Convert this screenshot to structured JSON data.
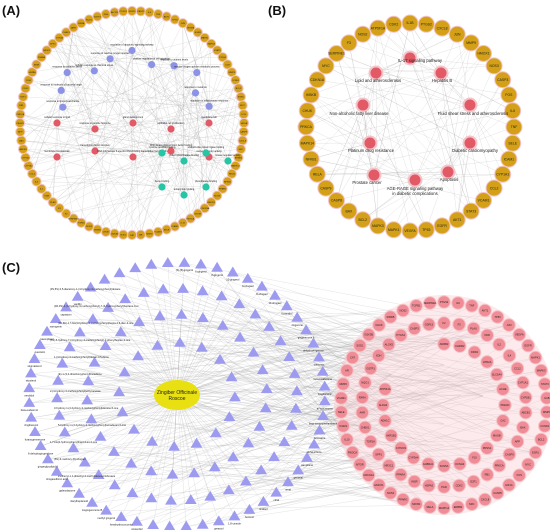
{
  "colors": {
    "gold": "#d4a017",
    "gold_ring": "#f3c4c9",
    "go_term": "#8c93e6",
    "kegg_red": "#e15a66",
    "teal": "#27c4a6",
    "triangle": "#9d9bf0",
    "target_pink": "#f08c96",
    "target_ring": "#f7c3c8",
    "compound_center": "#e8e011",
    "edge": "#aaaaaa"
  },
  "panels": {
    "a": {
      "label": "(A)",
      "outer_nodes": [
        "GDF15",
        "CASP3",
        "IL6",
        "TNF",
        "AKT1",
        "TP53",
        "JUN",
        "VEGFA",
        "EGFR",
        "MAPK1",
        "MAPK3",
        "STAT3",
        "PTGS2",
        "IL1B",
        "MMP9",
        "CCND1",
        "BCL2",
        "ESR1",
        "MYC",
        "FOS",
        "HIF1A",
        "CASP8",
        "CXCL8",
        "SRC",
        "ERBB2",
        "MAPK14",
        "RELA",
        "NFKB1",
        "PPARG",
        "NOS3",
        "HMOX1",
        "CDKN1A",
        "MTOR",
        "PIK3CA",
        "IL10",
        "ICAM1",
        "SELE",
        "VCAM1",
        "MMP2",
        "AR",
        "CAT",
        "SOD1",
        "GSK3B",
        "CHUK",
        "IKBKB",
        "NOS2",
        "TGFB1",
        "SERPINE1",
        "F2",
        "F3",
        "PLAU",
        "KDR",
        "IL2",
        "IL4",
        "CCL2",
        "CYP1A1",
        "CYP1B1",
        "ABCB1",
        "BAX",
        "APP",
        "CASP9",
        "PRKCA",
        "RB1",
        "E2F1",
        "CDK2",
        "PGR",
        "HSPA5",
        "INSR",
        "PPARA",
        "NR3C1",
        "SPP1",
        "TOP2A",
        "CHEK1",
        "AHR",
        "RXRA",
        "NQO1",
        "GSTP1",
        "XDH",
        "ALOX5",
        "PTGS1"
      ],
      "inner_labels": [
        "response to lipopolysaccharide",
        "response to molecule of bacterial origin",
        "response to oxidative stress",
        "cellular response to chemical stress",
        "response to reactive oxygen species",
        "regulation of apoptotic signaling pathway",
        "positive regulation of cell migration",
        "response to nutrient levels",
        "reactive oxygen species metabolic process",
        "response to metal ion",
        "regulation of inflammatory response",
        "cellular response to lipid",
        "response to peptide hormone",
        "gland development",
        "epithelial cell proliferation",
        "membrane raft",
        "membrane microdomain",
        "transcription factor complex",
        "RNA polymerase II-specific DNA-binding transcription factor binding",
        "DNA-binding transcription factor binding",
        "nuclear receptor activity",
        "cytokine receptor binding",
        "protein phosphatase binding",
        "ubiquitin-like protein ligase binding",
        "kinase regulator activity",
        "heme binding",
        "tetrapyrrole binding",
        "phosphatase binding"
      ]
    },
    "b": {
      "label": "(B)",
      "outer_nodes": [
        "IL1B",
        "PTGS2",
        "CXCL8",
        "JUN",
        "MMP9",
        "HMOX1",
        "NOS3",
        "CASP3",
        "FOS",
        "IL6",
        "TNF",
        "SELE",
        "ICAM1",
        "CYP1A1",
        "CCL2",
        "VCAM1",
        "STAT3",
        "AKT1",
        "EGFR",
        "TP53",
        "VEGFA",
        "MAPK1",
        "MAPK3",
        "BCL2",
        "BAX",
        "CASP8",
        "CASP9",
        "RELA",
        "NFKB1",
        "MAPK14",
        "PRKCA",
        "CHUK",
        "IKBKB",
        "CDKN1A",
        "MYC",
        "SERPINE1",
        "F3",
        "NOS2",
        "ATP5F1A",
        "CDK2"
      ],
      "inner_labels": [
        "IL-17 signaling pathway",
        "Lipid and atherosclerosis",
        "Hepatitis B",
        "Non-alcoholic fatty liver disease",
        "Fluid shear stress and atherosclerosis",
        "Platinum drug resistance",
        "Diabetic cardiomyopathy",
        "Prostate cancer",
        "Apoptosis",
        "AGE-RAGE signaling pathway in diabetic complications"
      ]
    },
    "c": {
      "label": "(C)",
      "center_label": "Zingiber Officinale Roscoe",
      "compounds": [
        "(S)-[6]-gingerol",
        "6-gingerol",
        "8-gingerol",
        "10-gingerol",
        "6-shogaol",
        "8-shogaol",
        "10-shogaol",
        "6-paradol",
        "zingerone",
        "gingerenone A",
        "dehydrozingerone",
        "curcumin",
        "beta-bisabolene",
        "zingiberene",
        "ar-curcumene",
        "beta-sesquiphellandrene",
        "farnesene",
        "alpha-pinene",
        "camphene",
        "geranial",
        "neral",
        "citral",
        "linalool",
        "borneol",
        "1,8-cineole",
        "geraniol",
        "myrcene",
        "limonene",
        "beta-elemene",
        "gingerdione",
        "gingerdiol",
        "hexahydrocurcumin",
        "methyl gingerol",
        "isogingerenone B",
        "diarylheptanoid",
        "galanolactone",
        "shogasulfonic acid",
        "gingerglycolipid A",
        "6-dehydrogingerdione",
        "furanogermenone",
        "zingiberenol",
        "beta-eudesmol",
        "nerolidol",
        "sitosterol",
        "stigmasterol",
        "quercetin",
        "kaempferol",
        "naringenin",
        "capsaicin",
        "vanillin"
      ],
      "long_labels": [
        "(3S,5S)-3,5-diacetoxy-1-(4-hydroxy-3-methoxyphenyl)decane",
        "(1R,3S)-1-(4-hydroxy-3-methoxyphenyl)-7-(4-hydroxyphenyl)heptane-3-ol",
        "(4E,6E)-1,7-bis(4-hydroxy-3-methoxyphenyl)hepta-4,6-dien-3-one",
        "(5S)-5-hydroxy-7-(4-hydroxy-3-methoxyphenyl)-1-phenylheptan-3-one",
        "1-(4-hydroxy-3-methoxyphenyl)decan-3,5-dione",
        "(E)-1-(3,4-dimethoxyphenyl)butadiene",
        "2-(4-hydroxy-3-methoxyphenyl)ethyl acetate",
        "3-hydroxy-1-(4-hydroxy-3-methoxyphenyl)decane-5-one",
        "5-hydroxy-1-(4-hydroxy-3-methoxyphenyl)tetradecan-3-one",
        "1,7-bis(4-hydroxyphenyl)hept-4-en-3-one",
        "(6S)-6-methoxy-[6]-shogaol",
        "2-ethenyl-1,1-dimethyl-3-methylidenecyclohexane"
      ],
      "targets": [
        "PTGS2",
        "IL6",
        "TNF",
        "AKT1",
        "TP53",
        "JUN",
        "VEGFA",
        "EGFR",
        "MAPK1",
        "MAPK3",
        "STAT3",
        "IL1B",
        "MMP9",
        "CCND1",
        "BCL2",
        "ESR1",
        "MYC",
        "FOS",
        "HIF1A",
        "CASP8",
        "CXCL8",
        "SRC",
        "ERBB2",
        "MAPK14",
        "RELA",
        "NFKB1",
        "PPARG",
        "NOS3",
        "HMOX1",
        "CDKN1A",
        "MTOR",
        "PIK3CA",
        "IL10",
        "ICAM1",
        "SELE",
        "VCAM1",
        "MMP2",
        "AR",
        "CAT",
        "SOD1",
        "GSK3B",
        "CHUK",
        "IKBKB",
        "NOS2",
        "TGFB1",
        "SERPINE1",
        "F2",
        "F3",
        "PLAU",
        "KDR",
        "IL2",
        "IL4",
        "CCL2",
        "CYP1A1",
        "CYP1B1",
        "ABCB1",
        "BAX",
        "APP",
        "CASP9",
        "PRKCA",
        "RB1",
        "E2F1",
        "CDK2",
        "PGR",
        "HSPA5",
        "INSR",
        "PPARA",
        "NR3C1",
        "SPP1",
        "TOP2A",
        "CHEK1",
        "AHR",
        "RXRA",
        "NQO1",
        "GSTP1",
        "XDH",
        "ALOX5",
        "PTGS1",
        "CASP3",
        "GDF15",
        "ADRB2",
        "CHRM2",
        "DRD2",
        "HTR2A",
        "SLC6A4",
        "ACHE",
        "PDE4D",
        "CA2",
        "MAOB",
        "PRSS1",
        "F10",
        "KCNH2",
        "SCN5A",
        "GABRA1",
        "CYP3A4",
        "CYP2C9",
        "AKR1B1",
        "ADH1C",
        "ALDH2",
        "ATP5F1A"
      ]
    }
  }
}
